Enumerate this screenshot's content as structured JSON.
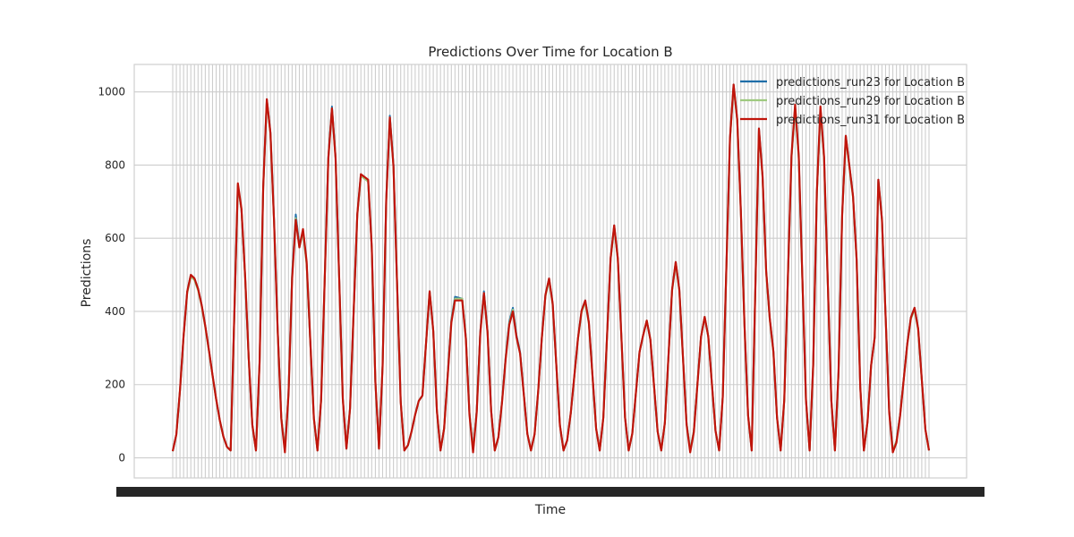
{
  "chart_data": {
    "type": "line",
    "title": "Predictions Over Time for Location B",
    "xlabel": "Time",
    "ylabel": "Predictions",
    "ylim": [
      -55,
      1075
    ],
    "yticks": [
      0,
      200,
      400,
      600,
      800,
      1000
    ],
    "grid": true,
    "legend_position": "top-right",
    "x_points": 210,
    "series": [
      {
        "name": "predictions_run23 for Location B",
        "color": "#1f6ea8",
        "peaks": [
          [
            5,
            500
          ],
          [
            16,
            20
          ],
          [
            18,
            745
          ],
          [
            23,
            20
          ],
          [
            26,
            980
          ],
          [
            31,
            20
          ],
          [
            34,
            665
          ],
          [
            35,
            580
          ],
          [
            36,
            620
          ],
          [
            40,
            20
          ],
          [
            44,
            960
          ],
          [
            48,
            25
          ],
          [
            52,
            775
          ],
          [
            54,
            755
          ],
          [
            57,
            25
          ],
          [
            60,
            935
          ],
          [
            64,
            20
          ],
          [
            69,
            170
          ],
          [
            71,
            455
          ],
          [
            74,
            20
          ],
          [
            78,
            440
          ],
          [
            80,
            435
          ],
          [
            83,
            20
          ],
          [
            86,
            455
          ],
          [
            89,
            20
          ],
          [
            94,
            410
          ],
          [
            95,
            335
          ],
          [
            99,
            20
          ],
          [
            104,
            490
          ],
          [
            108,
            20
          ],
          [
            114,
            430
          ],
          [
            118,
            20
          ],
          [
            122,
            635
          ],
          [
            126,
            20
          ],
          [
            130,
            335
          ],
          [
            131,
            375
          ],
          [
            135,
            20
          ],
          [
            139,
            535
          ],
          [
            143,
            20
          ],
          [
            147,
            385
          ],
          [
            151,
            20
          ],
          [
            155,
            1020
          ],
          [
            160,
            20
          ],
          [
            162,
            900
          ],
          [
            165,
            380
          ],
          [
            168,
            20
          ],
          [
            172,
            960
          ],
          [
            176,
            20
          ],
          [
            179,
            955
          ],
          [
            183,
            20
          ],
          [
            186,
            880
          ],
          [
            188,
            715
          ],
          [
            191,
            20
          ],
          [
            194,
            330
          ],
          [
            195,
            760
          ],
          [
            199,
            20
          ],
          [
            205,
            410
          ],
          [
            209,
            20
          ]
        ]
      },
      {
        "name": "predictions_run29 for Location B",
        "color": "#9ec97f",
        "peaks": [
          [
            5,
            495
          ],
          [
            16,
            20
          ],
          [
            18,
            745
          ],
          [
            23,
            20
          ],
          [
            26,
            975
          ],
          [
            31,
            20
          ],
          [
            34,
            655
          ],
          [
            35,
            575
          ],
          [
            36,
            615
          ],
          [
            40,
            20
          ],
          [
            44,
            955
          ],
          [
            48,
            25
          ],
          [
            52,
            770
          ],
          [
            54,
            755
          ],
          [
            57,
            25
          ],
          [
            60,
            930
          ],
          [
            64,
            20
          ],
          [
            69,
            170
          ],
          [
            71,
            455
          ],
          [
            74,
            20
          ],
          [
            78,
            435
          ],
          [
            80,
            435
          ],
          [
            83,
            20
          ],
          [
            86,
            450
          ],
          [
            89,
            20
          ],
          [
            94,
            405
          ],
          [
            95,
            330
          ],
          [
            99,
            20
          ],
          [
            104,
            485
          ],
          [
            108,
            20
          ],
          [
            114,
            425
          ],
          [
            118,
            20
          ],
          [
            122,
            630
          ],
          [
            126,
            20
          ],
          [
            130,
            335
          ],
          [
            131,
            375
          ],
          [
            135,
            20
          ],
          [
            139,
            530
          ],
          [
            143,
            20
          ],
          [
            147,
            385
          ],
          [
            151,
            20
          ],
          [
            155,
            1015
          ],
          [
            160,
            20
          ],
          [
            162,
            895
          ],
          [
            165,
            375
          ],
          [
            168,
            20
          ],
          [
            172,
            955
          ],
          [
            176,
            20
          ],
          [
            179,
            950
          ],
          [
            183,
            20
          ],
          [
            186,
            875
          ],
          [
            188,
            710
          ],
          [
            191,
            20
          ],
          [
            194,
            330
          ],
          [
            195,
            755
          ],
          [
            199,
            20
          ],
          [
            205,
            405
          ],
          [
            209,
            20
          ]
        ]
      },
      {
        "name": "predictions_run31 for Location B",
        "color": "#c0150b",
        "peaks": [
          [
            5,
            500
          ],
          [
            16,
            20
          ],
          [
            18,
            750
          ],
          [
            23,
            20
          ],
          [
            26,
            980
          ],
          [
            31,
            15
          ],
          [
            34,
            650
          ],
          [
            35,
            575
          ],
          [
            36,
            625
          ],
          [
            40,
            20
          ],
          [
            44,
            955
          ],
          [
            48,
            25
          ],
          [
            52,
            775
          ],
          [
            54,
            760
          ],
          [
            57,
            25
          ],
          [
            60,
            930
          ],
          [
            64,
            20
          ],
          [
            69,
            170
          ],
          [
            71,
            455
          ],
          [
            74,
            20
          ],
          [
            78,
            430
          ],
          [
            80,
            430
          ],
          [
            83,
            15
          ],
          [
            86,
            450
          ],
          [
            89,
            20
          ],
          [
            94,
            400
          ],
          [
            95,
            330
          ],
          [
            99,
            20
          ],
          [
            104,
            490
          ],
          [
            108,
            20
          ],
          [
            114,
            430
          ],
          [
            118,
            20
          ],
          [
            122,
            635
          ],
          [
            126,
            20
          ],
          [
            130,
            335
          ],
          [
            131,
            375
          ],
          [
            135,
            20
          ],
          [
            139,
            535
          ],
          [
            143,
            15
          ],
          [
            147,
            385
          ],
          [
            151,
            20
          ],
          [
            155,
            1020
          ],
          [
            160,
            20
          ],
          [
            162,
            900
          ],
          [
            165,
            380
          ],
          [
            168,
            20
          ],
          [
            172,
            965
          ],
          [
            176,
            20
          ],
          [
            179,
            960
          ],
          [
            183,
            20
          ],
          [
            186,
            880
          ],
          [
            188,
            715
          ],
          [
            191,
            20
          ],
          [
            194,
            330
          ],
          [
            195,
            760
          ],
          [
            199,
            15
          ],
          [
            205,
            410
          ],
          [
            209,
            20
          ]
        ]
      }
    ]
  }
}
